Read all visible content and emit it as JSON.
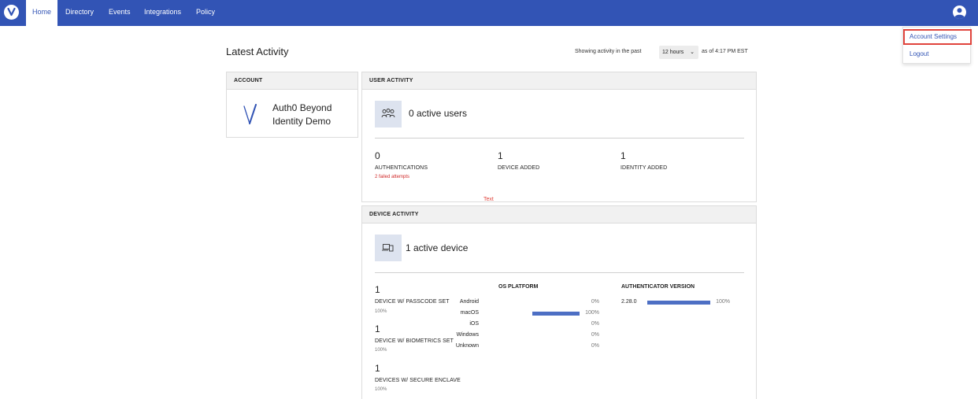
{
  "nav": {
    "items": [
      {
        "label": "Home",
        "active": true
      },
      {
        "label": "Directory",
        "active": false
      },
      {
        "label": "Events",
        "active": false
      },
      {
        "label": "Integrations",
        "active": false
      },
      {
        "label": "Policy",
        "active": false
      }
    ],
    "logo_icon": "brand-logo-icon",
    "user_icon": "user-avatar-icon"
  },
  "account_menu": {
    "items": [
      "Account Settings",
      "Logout"
    ],
    "highlighted": "Account Settings",
    "highlight_color": "#e0443c"
  },
  "header": {
    "title": "Latest Activity",
    "range_prefix": "Showing activity in the past",
    "range_value": "12 hours",
    "range_suffix": "as of 4:17 PM EST"
  },
  "account_card": {
    "title": "ACCOUNT",
    "name": "Auth0 Beyond Identity Demo"
  },
  "user_activity": {
    "title": "USER ACTIVITY",
    "icon": "users-icon",
    "summary": "0 active users",
    "stats": [
      {
        "value": "0",
        "label": "AUTHENTICATIONS",
        "note": "2 failed attempts"
      },
      {
        "value": "1",
        "label": "DEVICE ADDED"
      },
      {
        "value": "1",
        "label": "IDENTITY ADDED"
      }
    ]
  },
  "stray_label": "Text",
  "device_activity": {
    "title": "DEVICE ACTIVITY",
    "icon": "devices-icon",
    "summary": "1 active device",
    "stats": [
      {
        "value": "1",
        "label": "DEVICE W/ PASSCODE SET",
        "pct": "100%"
      },
      {
        "value": "1",
        "label": "DEVICE W/ BIOMETRICS SET",
        "pct": "100%"
      },
      {
        "value": "1",
        "label": "DEVICES W/ SECURE ENCLAVE",
        "pct": "100%"
      }
    ],
    "os_platform": {
      "title": "OS PLATFORM",
      "rows": [
        {
          "name": "Android",
          "pct": "0%",
          "fraction": 0
        },
        {
          "name": "macOS",
          "pct": "100%",
          "fraction": 1
        },
        {
          "name": "iOS",
          "pct": "0%",
          "fraction": 0
        },
        {
          "name": "Windows",
          "pct": "0%",
          "fraction": 0
        },
        {
          "name": "Unknown",
          "pct": "0%",
          "fraction": 0
        }
      ]
    },
    "authenticator": {
      "title": "AUTHENTICATOR VERSION",
      "rows": [
        {
          "version": "2.28.0",
          "pct": "100%",
          "fraction": 1
        }
      ]
    }
  },
  "colors": {
    "brand": "#3254b5",
    "bar": "#4d6fc4",
    "alert": "#d02828",
    "icon_bg": "#dde3ef"
  }
}
